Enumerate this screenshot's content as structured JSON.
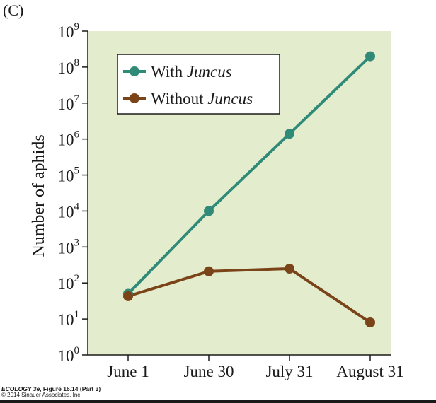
{
  "panel_label": "(C)",
  "credit": {
    "figure_prefix": "ECOLOGY 3e",
    "figure_rest": ", Figure 16.14 (Part 3)",
    "copyright": "© 2014 Sinauer Associates, Inc."
  },
  "colors": {
    "plot_bg": "#e3edcd",
    "with": "#2f8a78",
    "without": "#7b4418",
    "axis": "#1a1a1a"
  },
  "chart_data": {
    "type": "line",
    "title": "",
    "xlabel": "",
    "ylabel": "Number of aphids",
    "yscale": "log10",
    "ylim": [
      1,
      1000000000
    ],
    "categories": [
      "June 1",
      "June 30",
      "July 31",
      "August 31"
    ],
    "y_ticks": [
      {
        "base": "10",
        "exp": "0"
      },
      {
        "base": "10",
        "exp": "1"
      },
      {
        "base": "10",
        "exp": "2"
      },
      {
        "base": "10",
        "exp": "3"
      },
      {
        "base": "10",
        "exp": "4"
      },
      {
        "base": "10",
        "exp": "5"
      },
      {
        "base": "10",
        "exp": "6"
      },
      {
        "base": "10",
        "exp": "7"
      },
      {
        "base": "10",
        "exp": "8"
      },
      {
        "base": "10",
        "exp": "9"
      }
    ],
    "legend_position": "top-left",
    "series": [
      {
        "name": "With Juncus",
        "name_plain": "With ",
        "name_italic": "Juncus",
        "color": "#2f8a78",
        "values": [
          50,
          10000,
          1400000,
          200000000
        ]
      },
      {
        "name": "Without Juncus",
        "name_plain": "Without ",
        "name_italic": "Juncus",
        "color": "#7b4418",
        "values": [
          43,
          210,
          250,
          8
        ]
      }
    ]
  }
}
